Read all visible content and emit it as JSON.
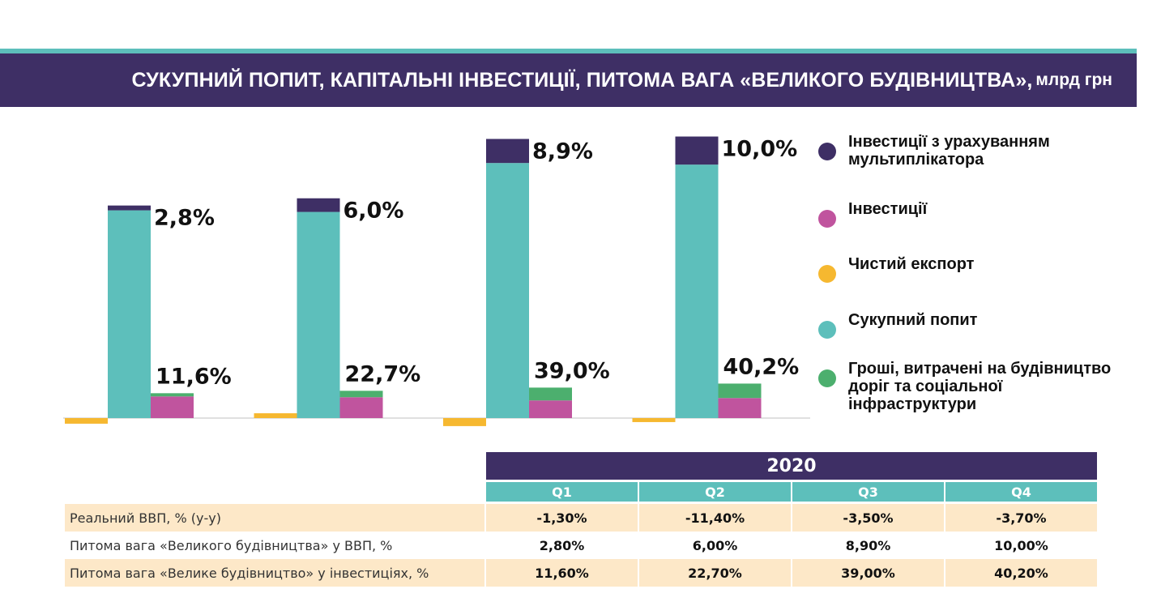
{
  "header": {
    "title": "СУКУПНИЙ ПОПИТ, КАПІТАЛЬНІ ІНВЕСТИЦІЇ, ПИТОМА ВАГА «ВЕЛИКОГО БУДІВНИЦТВА»,",
    "unit": "млрд грн"
  },
  "colors": {
    "multiplier": "#3e2f65",
    "investments": "#c0549e",
    "net_export": "#f6b830",
    "aggregate_demand": "#5dbfbb",
    "construction": "#4caf6e"
  },
  "chart_data": {
    "type": "bar",
    "categories": [
      "Q1",
      "Q2",
      "Q3",
      "Q4"
    ],
    "series": [
      {
        "name": "Інвестиції з урахуванням мультиплікатора",
        "stacked_on": "Сукупний попит",
        "values": [
          6,
          17,
          30,
          35
        ]
      },
      {
        "name": "Інвестиції",
        "values": [
          27,
          26,
          22,
          25
        ]
      },
      {
        "name": "Чистий експорт",
        "values": [
          -7,
          6,
          -10,
          -5
        ]
      },
      {
        "name": "Сукупний попит",
        "values": [
          259,
          257,
          318,
          316
        ]
      },
      {
        "name": "Гроші, витрачені на будівництво доріг та соціальної інфраструктури",
        "stacked_on": "Інвестиції",
        "values": [
          4,
          8,
          16,
          18
        ]
      }
    ],
    "top_labels": [
      "2,8%",
      "6,0%",
      "8,9%",
      "10,0%"
    ],
    "bottom_labels": [
      "11,6%",
      "22,7%",
      "39,0%",
      "40,2%"
    ],
    "ylim": [
      -12,
      350
    ],
    "grid": false,
    "legend_position": "right"
  },
  "table": {
    "year": "2020",
    "quarters": [
      "Q1",
      "Q2",
      "Q3",
      "Q4"
    ],
    "rows": [
      {
        "label": "Реальний ВВП, % (у-у)",
        "values": [
          "-1,30%",
          "-11,40%",
          "-3,50%",
          "-3,70%"
        ]
      },
      {
        "label": "Питома вага «Великого будівництва» у ВВП, %",
        "values": [
          "2,80%",
          "6,00%",
          "8,90%",
          "10,00%"
        ]
      },
      {
        "label": "Питома вага «Велике будівництво» у інвестиціях, %",
        "values": [
          "11,60%",
          "22,70%",
          "39,00%",
          "40,20%"
        ]
      }
    ]
  }
}
